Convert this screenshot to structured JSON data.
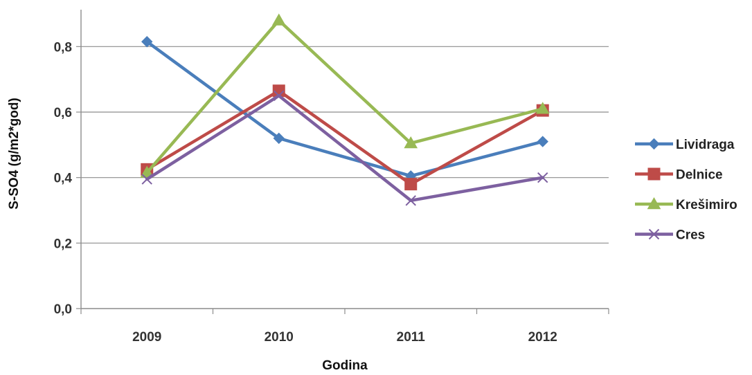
{
  "chart_data": {
    "type": "line",
    "title": "",
    "xlabel": "Godina",
    "ylabel": "S-SO4 (g/m2*god)",
    "categories": [
      "2009",
      "2010",
      "2011",
      "2012"
    ],
    "ylim": [
      0,
      0.9
    ],
    "yticks": [
      0.0,
      0.2,
      0.4,
      0.6,
      0.8
    ],
    "ytick_labels": [
      "0,0",
      "0,2",
      "0,4",
      "0,6",
      "0,8"
    ],
    "grid": "horizontal",
    "legend_position": "right",
    "series": [
      {
        "name": "Lividraga",
        "values": [
          0.815,
          0.52,
          0.405,
          0.51
        ],
        "color": "#4a7ebb",
        "marker": "diamond"
      },
      {
        "name": "Delnice",
        "values": [
          0.425,
          0.665,
          0.38,
          0.605
        ],
        "color": "#be4b48",
        "marker": "square"
      },
      {
        "name": "Krešimiro",
        "values": [
          0.415,
          0.88,
          0.505,
          0.61
        ],
        "color": "#98b954",
        "marker": "triangle"
      },
      {
        "name": "Cres",
        "values": [
          0.395,
          0.65,
          0.33,
          0.4
        ],
        "color": "#7d60a0",
        "marker": "x"
      }
    ]
  }
}
